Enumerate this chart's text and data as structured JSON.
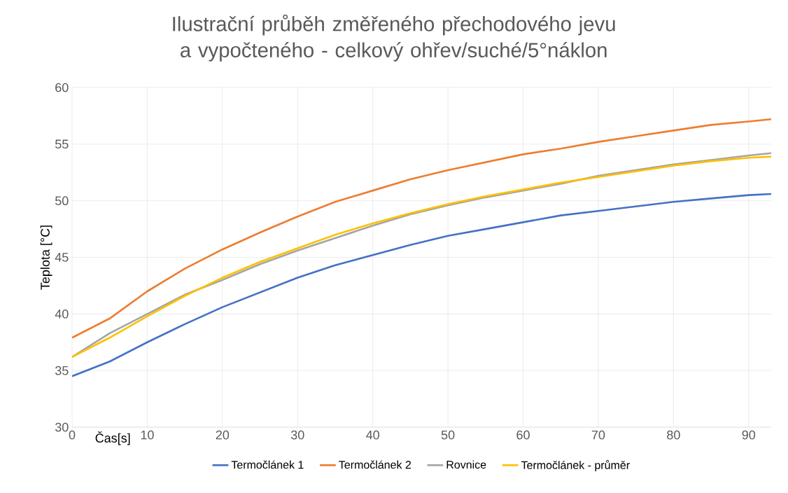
{
  "chart_data": {
    "type": "line",
    "title": "Ilustrační průběh změřeného přechodového jevu a vypočteného - celkový ohřev/suché/5°náklon",
    "xlabel": "Čas[s]",
    "ylabel": "Teplota [°C]",
    "x": [
      0,
      5,
      10,
      15,
      20,
      25,
      30,
      35,
      40,
      45,
      50,
      55,
      60,
      65,
      70,
      75,
      80,
      85,
      90,
      93
    ],
    "series": [
      {
        "name": "Termočlánek 1",
        "color": "#4472c4",
        "values": [
          34.5,
          35.8,
          37.5,
          39.1,
          40.6,
          41.9,
          43.2,
          44.3,
          45.2,
          46.1,
          46.9,
          47.5,
          48.1,
          48.7,
          49.1,
          49.5,
          49.9,
          50.2,
          50.5,
          50.6
        ]
      },
      {
        "name": "Termočlánek 2",
        "color": "#ed7d31",
        "values": [
          37.9,
          39.6,
          42.0,
          44.0,
          45.7,
          47.2,
          48.6,
          49.9,
          50.9,
          51.9,
          52.7,
          53.4,
          54.1,
          54.6,
          55.2,
          55.7,
          56.2,
          56.7,
          57.0,
          57.2
        ]
      },
      {
        "name": "Rovnice",
        "color": "#a5a5a5",
        "values": [
          36.2,
          38.3,
          40.0,
          41.7,
          43.0,
          44.4,
          45.6,
          46.7,
          47.8,
          48.8,
          49.6,
          50.3,
          50.9,
          51.5,
          52.2,
          52.7,
          53.2,
          53.6,
          54.0,
          54.2
        ]
      },
      {
        "name": "Termočlánek - průměr",
        "color": "#ffc000",
        "values": [
          36.2,
          37.9,
          39.8,
          41.6,
          43.2,
          44.6,
          45.8,
          47.0,
          48.0,
          48.9,
          49.7,
          50.4,
          51.0,
          51.6,
          52.1,
          52.6,
          53.1,
          53.5,
          53.8,
          53.9
        ]
      }
    ],
    "xlim": [
      0,
      93
    ],
    "xticks": [
      0,
      10,
      20,
      30,
      40,
      50,
      60,
      70,
      80,
      90
    ],
    "ylim": [
      30,
      60
    ],
    "yticks": [
      30,
      35,
      40,
      45,
      50,
      55,
      60
    ],
    "grid": true,
    "legend": "bottom",
    "marker": "none",
    "line_style": "solid"
  }
}
